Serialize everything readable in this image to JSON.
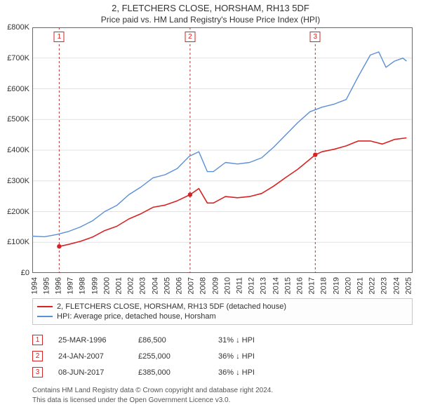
{
  "title": {
    "main": "2, FLETCHERS CLOSE, HORSHAM, RH13 5DF",
    "sub": "Price paid vs. HM Land Registry's House Price Index (HPI)"
  },
  "chart": {
    "type": "line",
    "background_color": "#ffffff",
    "grid_color": "#e2e2e2",
    "axis_color": "#666666",
    "x": {
      "min": 1994,
      "max": 2025.5,
      "ticks": [
        1994,
        1995,
        1996,
        1997,
        1998,
        1999,
        2000,
        2001,
        2002,
        2003,
        2004,
        2005,
        2006,
        2007,
        2008,
        2009,
        2010,
        2011,
        2012,
        2013,
        2014,
        2015,
        2016,
        2017,
        2018,
        2019,
        2020,
        2021,
        2022,
        2023,
        2024,
        2025
      ]
    },
    "y": {
      "min": 0,
      "max": 800000,
      "ticks": [
        0,
        100000,
        200000,
        300000,
        400000,
        500000,
        600000,
        700000,
        800000
      ],
      "tick_labels": [
        "£0",
        "£100K",
        "£200K",
        "£300K",
        "£400K",
        "£500K",
        "£600K",
        "£700K",
        "£800K"
      ]
    },
    "series": [
      {
        "id": "hpi",
        "label": "HPI: Average price, detached house, Horsham",
        "color": "#5b8fd6",
        "line_width": 1.4,
        "points": [
          [
            1994,
            120000
          ],
          [
            1995,
            118000
          ],
          [
            1996,
            125000
          ],
          [
            1997,
            135000
          ],
          [
            1998,
            150000
          ],
          [
            1999,
            170000
          ],
          [
            2000,
            200000
          ],
          [
            2001,
            220000
          ],
          [
            2002,
            255000
          ],
          [
            2003,
            280000
          ],
          [
            2004,
            310000
          ],
          [
            2005,
            320000
          ],
          [
            2006,
            340000
          ],
          [
            2007,
            380000
          ],
          [
            2007.8,
            395000
          ],
          [
            2008.5,
            330000
          ],
          [
            2009,
            330000
          ],
          [
            2010,
            360000
          ],
          [
            2011,
            355000
          ],
          [
            2012,
            360000
          ],
          [
            2013,
            375000
          ],
          [
            2014,
            410000
          ],
          [
            2015,
            450000
          ],
          [
            2016,
            490000
          ],
          [
            2017,
            525000
          ],
          [
            2018,
            540000
          ],
          [
            2019,
            550000
          ],
          [
            2020,
            565000
          ],
          [
            2021,
            640000
          ],
          [
            2022,
            710000
          ],
          [
            2022.7,
            720000
          ],
          [
            2023.3,
            670000
          ],
          [
            2024,
            690000
          ],
          [
            2024.7,
            700000
          ],
          [
            2025,
            690000
          ]
        ]
      },
      {
        "id": "property",
        "label": "2, FLETCHERS CLOSE, HORSHAM, RH13 5DF (detached house)",
        "color": "#d62424",
        "line_width": 1.6,
        "points": [
          [
            1996.23,
            86500
          ],
          [
            1997,
            93000
          ],
          [
            1998,
            103000
          ],
          [
            1999,
            117000
          ],
          [
            2000,
            138000
          ],
          [
            2001,
            152000
          ],
          [
            2002,
            176000
          ],
          [
            2003,
            193000
          ],
          [
            2004,
            214000
          ],
          [
            2005,
            221000
          ],
          [
            2006,
            235000
          ],
          [
            2007.07,
            255000
          ],
          [
            2007.8,
            275000
          ],
          [
            2008.5,
            228000
          ],
          [
            2009,
            228000
          ],
          [
            2010,
            249000
          ],
          [
            2011,
            245000
          ],
          [
            2012,
            249000
          ],
          [
            2013,
            259000
          ],
          [
            2014,
            283000
          ],
          [
            2015,
            311000
          ],
          [
            2016,
            338000
          ],
          [
            2017.44,
            385000
          ],
          [
            2018,
            395000
          ],
          [
            2019,
            403000
          ],
          [
            2020,
            414000
          ],
          [
            2021,
            430000
          ],
          [
            2022,
            430000
          ],
          [
            2023,
            420000
          ],
          [
            2024,
            435000
          ],
          [
            2025,
            440000
          ]
        ],
        "markers": [
          {
            "x": 1996.23,
            "y": 86500
          },
          {
            "x": 2007.07,
            "y": 255000
          },
          {
            "x": 2017.44,
            "y": 385000
          }
        ],
        "marker_color": "#d62424",
        "marker_radius": 3.2
      }
    ],
    "flags": [
      {
        "n": "1",
        "x": 1996.23,
        "color": "#d62424"
      },
      {
        "n": "2",
        "x": 2007.07,
        "color": "#d62424"
      },
      {
        "n": "3",
        "x": 2017.44,
        "color": "#d62424"
      }
    ],
    "flag_line_color": "#d62424",
    "flag_line_dash": "3,3"
  },
  "legend": [
    {
      "color": "#d62424",
      "label": "2, FLETCHERS CLOSE, HORSHAM, RH13 5DF (detached house)"
    },
    {
      "color": "#5b8fd6",
      "label": "HPI: Average price, detached house, Horsham"
    }
  ],
  "sales": [
    {
      "n": "1",
      "color": "#d62424",
      "date": "25-MAR-1996",
      "price": "£86,500",
      "delta": "31% ↓ HPI"
    },
    {
      "n": "2",
      "color": "#d62424",
      "date": "24-JAN-2007",
      "price": "£255,000",
      "delta": "36% ↓ HPI"
    },
    {
      "n": "3",
      "color": "#d62424",
      "date": "08-JUN-2017",
      "price": "£385,000",
      "delta": "36% ↓ HPI"
    }
  ],
  "footer": {
    "l1": "Contains HM Land Registry data © Crown copyright and database right 2024.",
    "l2": "This data is licensed under the Open Government Licence v3.0."
  }
}
